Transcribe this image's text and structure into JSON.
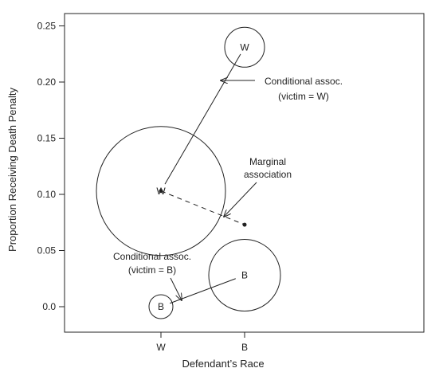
{
  "chart_data": {
    "type": "scatter",
    "xlabel": "Defendant’s Race",
    "ylabel": "Proportion Receiving Death Penalty",
    "x_categories": [
      "W",
      "B"
    ],
    "y_ticks": [
      "0.0",
      "0.05",
      "0.10",
      "0.15",
      "0.20",
      "0.25"
    ],
    "y_tick_values": [
      0.0,
      0.05,
      0.1,
      0.15,
      0.2,
      0.25
    ],
    "ylim": [
      -0.0225,
      0.2625
    ],
    "grid": false,
    "circles": [
      {
        "label": "W",
        "x": "W",
        "y": 0.103,
        "victim": "W"
      },
      {
        "label": "W",
        "x": "B",
        "y": 0.231,
        "victim": "W"
      },
      {
        "label": "B",
        "x": "W",
        "y": 0.0,
        "victim": "B"
      },
      {
        "label": "B",
        "x": "B",
        "y": 0.028,
        "victim": "B"
      }
    ],
    "marginal_points": [
      {
        "x": "W",
        "y": 0.103
      },
      {
        "x": "B",
        "y": 0.073
      }
    ],
    "annotations": [
      {
        "lines": [
          "Conditional assoc.",
          "(victim = W)"
        ]
      },
      {
        "lines": [
          "Marginal",
          "association"
        ]
      },
      {
        "lines": [
          "Conditional assoc.",
          "(victim = B)"
        ]
      }
    ]
  }
}
